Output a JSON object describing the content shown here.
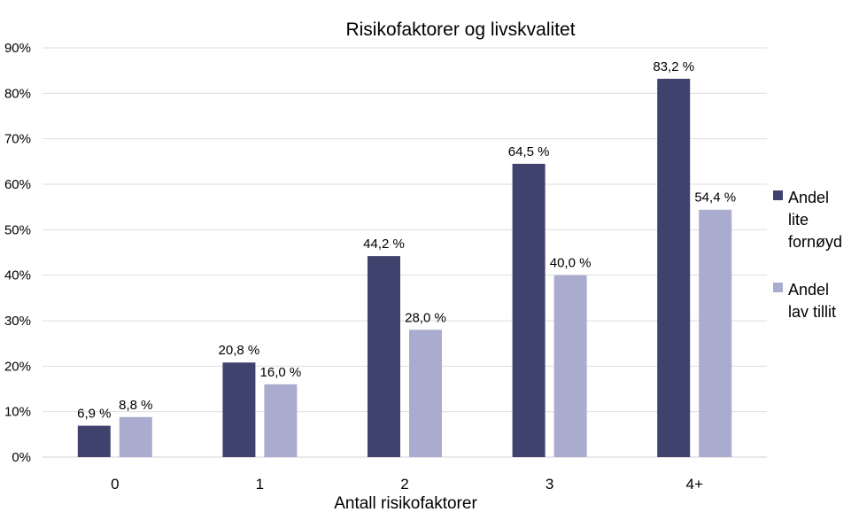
{
  "chart_data": {
    "type": "bar",
    "title": "Risikofaktorer og livskvalitet",
    "xlabel": "Antall risikofaktorer",
    "ylabel": "",
    "categories": [
      "0",
      "1",
      "2",
      "3",
      "4+"
    ],
    "ylim": [
      0,
      90
    ],
    "yticks": [
      "0%",
      "10%",
      "20%",
      "30%",
      "40%",
      "50%",
      "60%",
      "70%",
      "80%",
      "90%"
    ],
    "grid": true,
    "legend_position": "right",
    "series": [
      {
        "name": "Andel lite fornøyd",
        "legend_lines": [
          "Andel",
          "lite",
          "fornøyd"
        ],
        "color": "#40426e",
        "values": [
          6.9,
          20.8,
          44.2,
          64.5,
          83.2
        ],
        "labels": [
          "6,9 %",
          "20,8 %",
          "44,2 %",
          "64,5 %",
          "83,2 %"
        ]
      },
      {
        "name": "Andel lav tillit",
        "legend_lines": [
          "Andel",
          "lav tillit"
        ],
        "color": "#a9acce",
        "values": [
          8.8,
          16.0,
          28.0,
          40.0,
          54.4
        ],
        "labels": [
          "8,8 %",
          "16,0 %",
          "28,0 %",
          "40,0 %",
          "54,4 %"
        ]
      }
    ]
  }
}
